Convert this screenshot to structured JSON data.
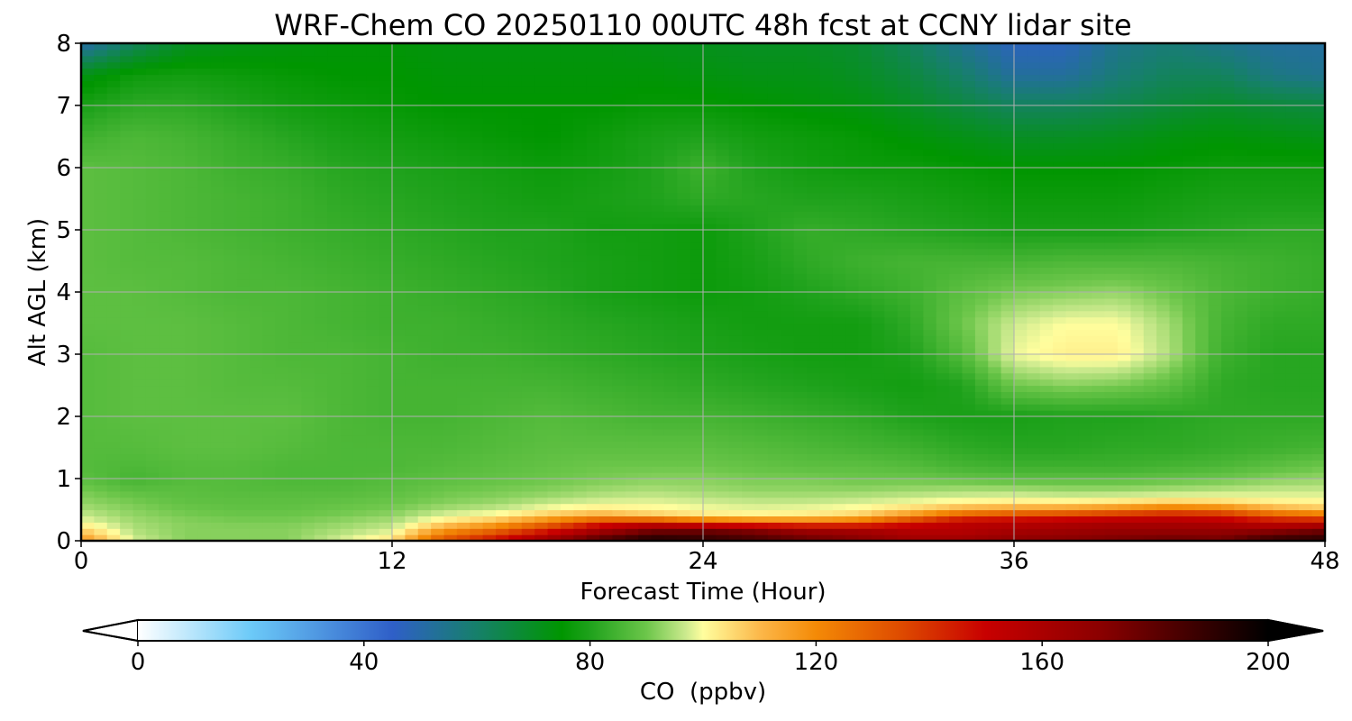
{
  "chart_data": {
    "type": "heatmap",
    "title": "WRF-Chem CO  20250110 00UTC 48h fcst at CCNY lidar site",
    "xlabel": "Forecast Time (Hour)",
    "ylabel": "Alt AGL (km)",
    "xlim": [
      0,
      48
    ],
    "ylim": [
      0,
      8
    ],
    "x_ticks": [
      0,
      12,
      24,
      36,
      48
    ],
    "x_tick_labels": [
      "0",
      "12",
      "24",
      "36",
      "48"
    ],
    "y_ticks": [
      0,
      1,
      2,
      3,
      4,
      5,
      6,
      7,
      8
    ],
    "y_tick_labels": [
      "0",
      "1",
      "2",
      "3",
      "4",
      "5",
      "6",
      "7",
      "8"
    ],
    "grid": true,
    "colorbar": {
      "label": "CO  (ppbv)",
      "orientation": "horizontal",
      "min": 0,
      "max": 200,
      "extend": "both",
      "ticks": [
        0,
        40,
        80,
        120,
        160,
        200
      ],
      "tick_labels": [
        "0",
        "40",
        "80",
        "120",
        "160",
        "200"
      ],
      "color_stops": [
        {
          "value": 0,
          "color": "#ffffff"
        },
        {
          "value": 20,
          "color": "#6ccaf8"
        },
        {
          "value": 45,
          "color": "#2f5fc8"
        },
        {
          "value": 60,
          "color": "#16806a"
        },
        {
          "value": 75,
          "color": "#009600"
        },
        {
          "value": 80,
          "color": "#1fa21c"
        },
        {
          "value": 90,
          "color": "#6cc64a"
        },
        {
          "value": 97,
          "color": "#ccea8e"
        },
        {
          "value": 100,
          "color": "#fffe9e"
        },
        {
          "value": 110,
          "color": "#fcb84a"
        },
        {
          "value": 120,
          "color": "#f48a06"
        },
        {
          "value": 135,
          "color": "#de4b00"
        },
        {
          "value": 150,
          "color": "#c80000"
        },
        {
          "value": 170,
          "color": "#8c0000"
        },
        {
          "value": 200,
          "color": "#000000"
        }
      ]
    },
    "x": [
      0,
      2,
      4,
      6,
      8,
      10,
      12,
      14,
      16,
      18,
      20,
      22,
      24,
      26,
      28,
      30,
      32,
      34,
      36,
      38,
      40,
      42,
      44,
      46,
      48
    ],
    "y": [
      0,
      0.1,
      0.2,
      0.3,
      0.4,
      0.5,
      0.6,
      0.7,
      0.8,
      1,
      1.2,
      1.5,
      2,
      2.5,
      3,
      3.5,
      4,
      4.5,
      5,
      5.5,
      6,
      6.5,
      7,
      7.5,
      8
    ],
    "z": [
      [
        118,
        98,
        92,
        92,
        92,
        98,
        105,
        135,
        150,
        168,
        185,
        195,
        190,
        185,
        178,
        172,
        165,
        165,
        170,
        172,
        175,
        178,
        175,
        190,
        192
      ],
      [
        112,
        96,
        92,
        92,
        92,
        96,
        100,
        125,
        138,
        155,
        172,
        185,
        185,
        180,
        172,
        168,
        160,
        160,
        165,
        168,
        170,
        172,
        172,
        180,
        185
      ],
      [
        105,
        95,
        92,
        92,
        92,
        94,
        97,
        115,
        125,
        140,
        158,
        170,
        172,
        168,
        160,
        158,
        155,
        155,
        160,
        162,
        165,
        165,
        165,
        165,
        172
      ],
      [
        100,
        94,
        92,
        91,
        91,
        93,
        95,
        104,
        112,
        125,
        140,
        145,
        135,
        130,
        128,
        130,
        145,
        155,
        155,
        158,
        160,
        160,
        158,
        150,
        150
      ],
      [
        97,
        93,
        91,
        90,
        90,
        91,
        93,
        99,
        102,
        110,
        115,
        110,
        105,
        103,
        104,
        108,
        120,
        135,
        140,
        142,
        145,
        148,
        145,
        135,
        130
      ],
      [
        95,
        92,
        90,
        89,
        89,
        90,
        91,
        95,
        97,
        101,
        104,
        102,
        100,
        99,
        100,
        102,
        108,
        115,
        118,
        120,
        125,
        130,
        128,
        115,
        110
      ],
      [
        93,
        91,
        89,
        88,
        88,
        89,
        90,
        92,
        94,
        97,
        99,
        99,
        98,
        97,
        97,
        98,
        100,
        103,
        104,
        104,
        106,
        110,
        108,
        104,
        103
      ],
      [
        92,
        90,
        88,
        88,
        88,
        88,
        89,
        91,
        92,
        94,
        96,
        97,
        96,
        95,
        95,
        96,
        97,
        98,
        99,
        98,
        99,
        100,
        100,
        99,
        99
      ],
      [
        91,
        88,
        88,
        87,
        87,
        87,
        88,
        90,
        91,
        92,
        94,
        95,
        94,
        93,
        93,
        93,
        94,
        95,
        95,
        94,
        94,
        95,
        96,
        97,
        97
      ],
      [
        88,
        85,
        87,
        87,
        86,
        86,
        87,
        88,
        89,
        90,
        91,
        92,
        92,
        91,
        91,
        90,
        90,
        89,
        88,
        88,
        88,
        89,
        90,
        92,
        93
      ],
      [
        87,
        86,
        87,
        87,
        86,
        86,
        86,
        87,
        88,
        89,
        90,
        90,
        90,
        89,
        88,
        88,
        87,
        85,
        84,
        84,
        84,
        85,
        86,
        88,
        90
      ],
      [
        87,
        87,
        88,
        88,
        87,
        86,
        86,
        86,
        87,
        88,
        88,
        88,
        88,
        87,
        86,
        85,
        84,
        82,
        81,
        81,
        82,
        82,
        83,
        84,
        85
      ],
      [
        87,
        88,
        88,
        88,
        88,
        86,
        85,
        85,
        86,
        87,
        86,
        85,
        85,
        84,
        83,
        82,
        80,
        79,
        79,
        80,
        80,
        81,
        82,
        82,
        82
      ],
      [
        87,
        88,
        88,
        87,
        87,
        86,
        85,
        85,
        85,
        85,
        84,
        83,
        82,
        81,
        80,
        79,
        78,
        80,
        90,
        92,
        91,
        88,
        82,
        81,
        81
      ],
      [
        87,
        88,
        88,
        87,
        86,
        86,
        85,
        84,
        84,
        83,
        82,
        81,
        80,
        79,
        78,
        78,
        80,
        87,
        99,
        102,
        102,
        95,
        84,
        81,
        81
      ],
      [
        88,
        88,
        88,
        87,
        86,
        85,
        84,
        84,
        83,
        82,
        81,
        80,
        79,
        78,
        78,
        78,
        82,
        90,
        97,
        100,
        100,
        94,
        85,
        82,
        82
      ],
      [
        88,
        88,
        87,
        86,
        86,
        85,
        84,
        83,
        82,
        81,
        79,
        78,
        77,
        78,
        80,
        82,
        84,
        88,
        91,
        92,
        93,
        90,
        86,
        84,
        83
      ],
      [
        88,
        87,
        87,
        86,
        85,
        84,
        83,
        82,
        81,
        80,
        79,
        78,
        77,
        79,
        82,
        84,
        85,
        85,
        85,
        86,
        86,
        86,
        85,
        84,
        83
      ],
      [
        88,
        87,
        86,
        85,
        84,
        83,
        82,
        81,
        80,
        80,
        78,
        78,
        77,
        80,
        83,
        82,
        81,
        80,
        79,
        79,
        79,
        80,
        81,
        82,
        82
      ],
      [
        88,
        87,
        86,
        85,
        84,
        82,
        81,
        80,
        79,
        78,
        79,
        80,
        82,
        81,
        80,
        80,
        79,
        78,
        77,
        77,
        77,
        78,
        79,
        79,
        79
      ],
      [
        88,
        87,
        86,
        84,
        83,
        81,
        80,
        79,
        78,
        77,
        78,
        80,
        84,
        80,
        78,
        77,
        77,
        76,
        75,
        75,
        75,
        76,
        77,
        77,
        77
      ],
      [
        84,
        86,
        85,
        83,
        81,
        79,
        78,
        77,
        76,
        75,
        77,
        79,
        80,
        78,
        77,
        76,
        74,
        72,
        70,
        70,
        71,
        73,
        74,
        73,
        72
      ],
      [
        79,
        82,
        82,
        80,
        78,
        77,
        76,
        75,
        75,
        75,
        75,
        76,
        76,
        75,
        74,
        73,
        70,
        66,
        62,
        62,
        64,
        67,
        69,
        67,
        66
      ],
      [
        72,
        77,
        78,
        77,
        76,
        75,
        75,
        74,
        74,
        74,
        74,
        74,
        73,
        72,
        72,
        70,
        66,
        60,
        52,
        52,
        58,
        62,
        62,
        56,
        54
      ],
      [
        50,
        62,
        70,
        72,
        73,
        74,
        74,
        73,
        73,
        73,
        73,
        72,
        71,
        70,
        70,
        68,
        62,
        54,
        47,
        47,
        55,
        58,
        55,
        52,
        52
      ]
    ]
  }
}
